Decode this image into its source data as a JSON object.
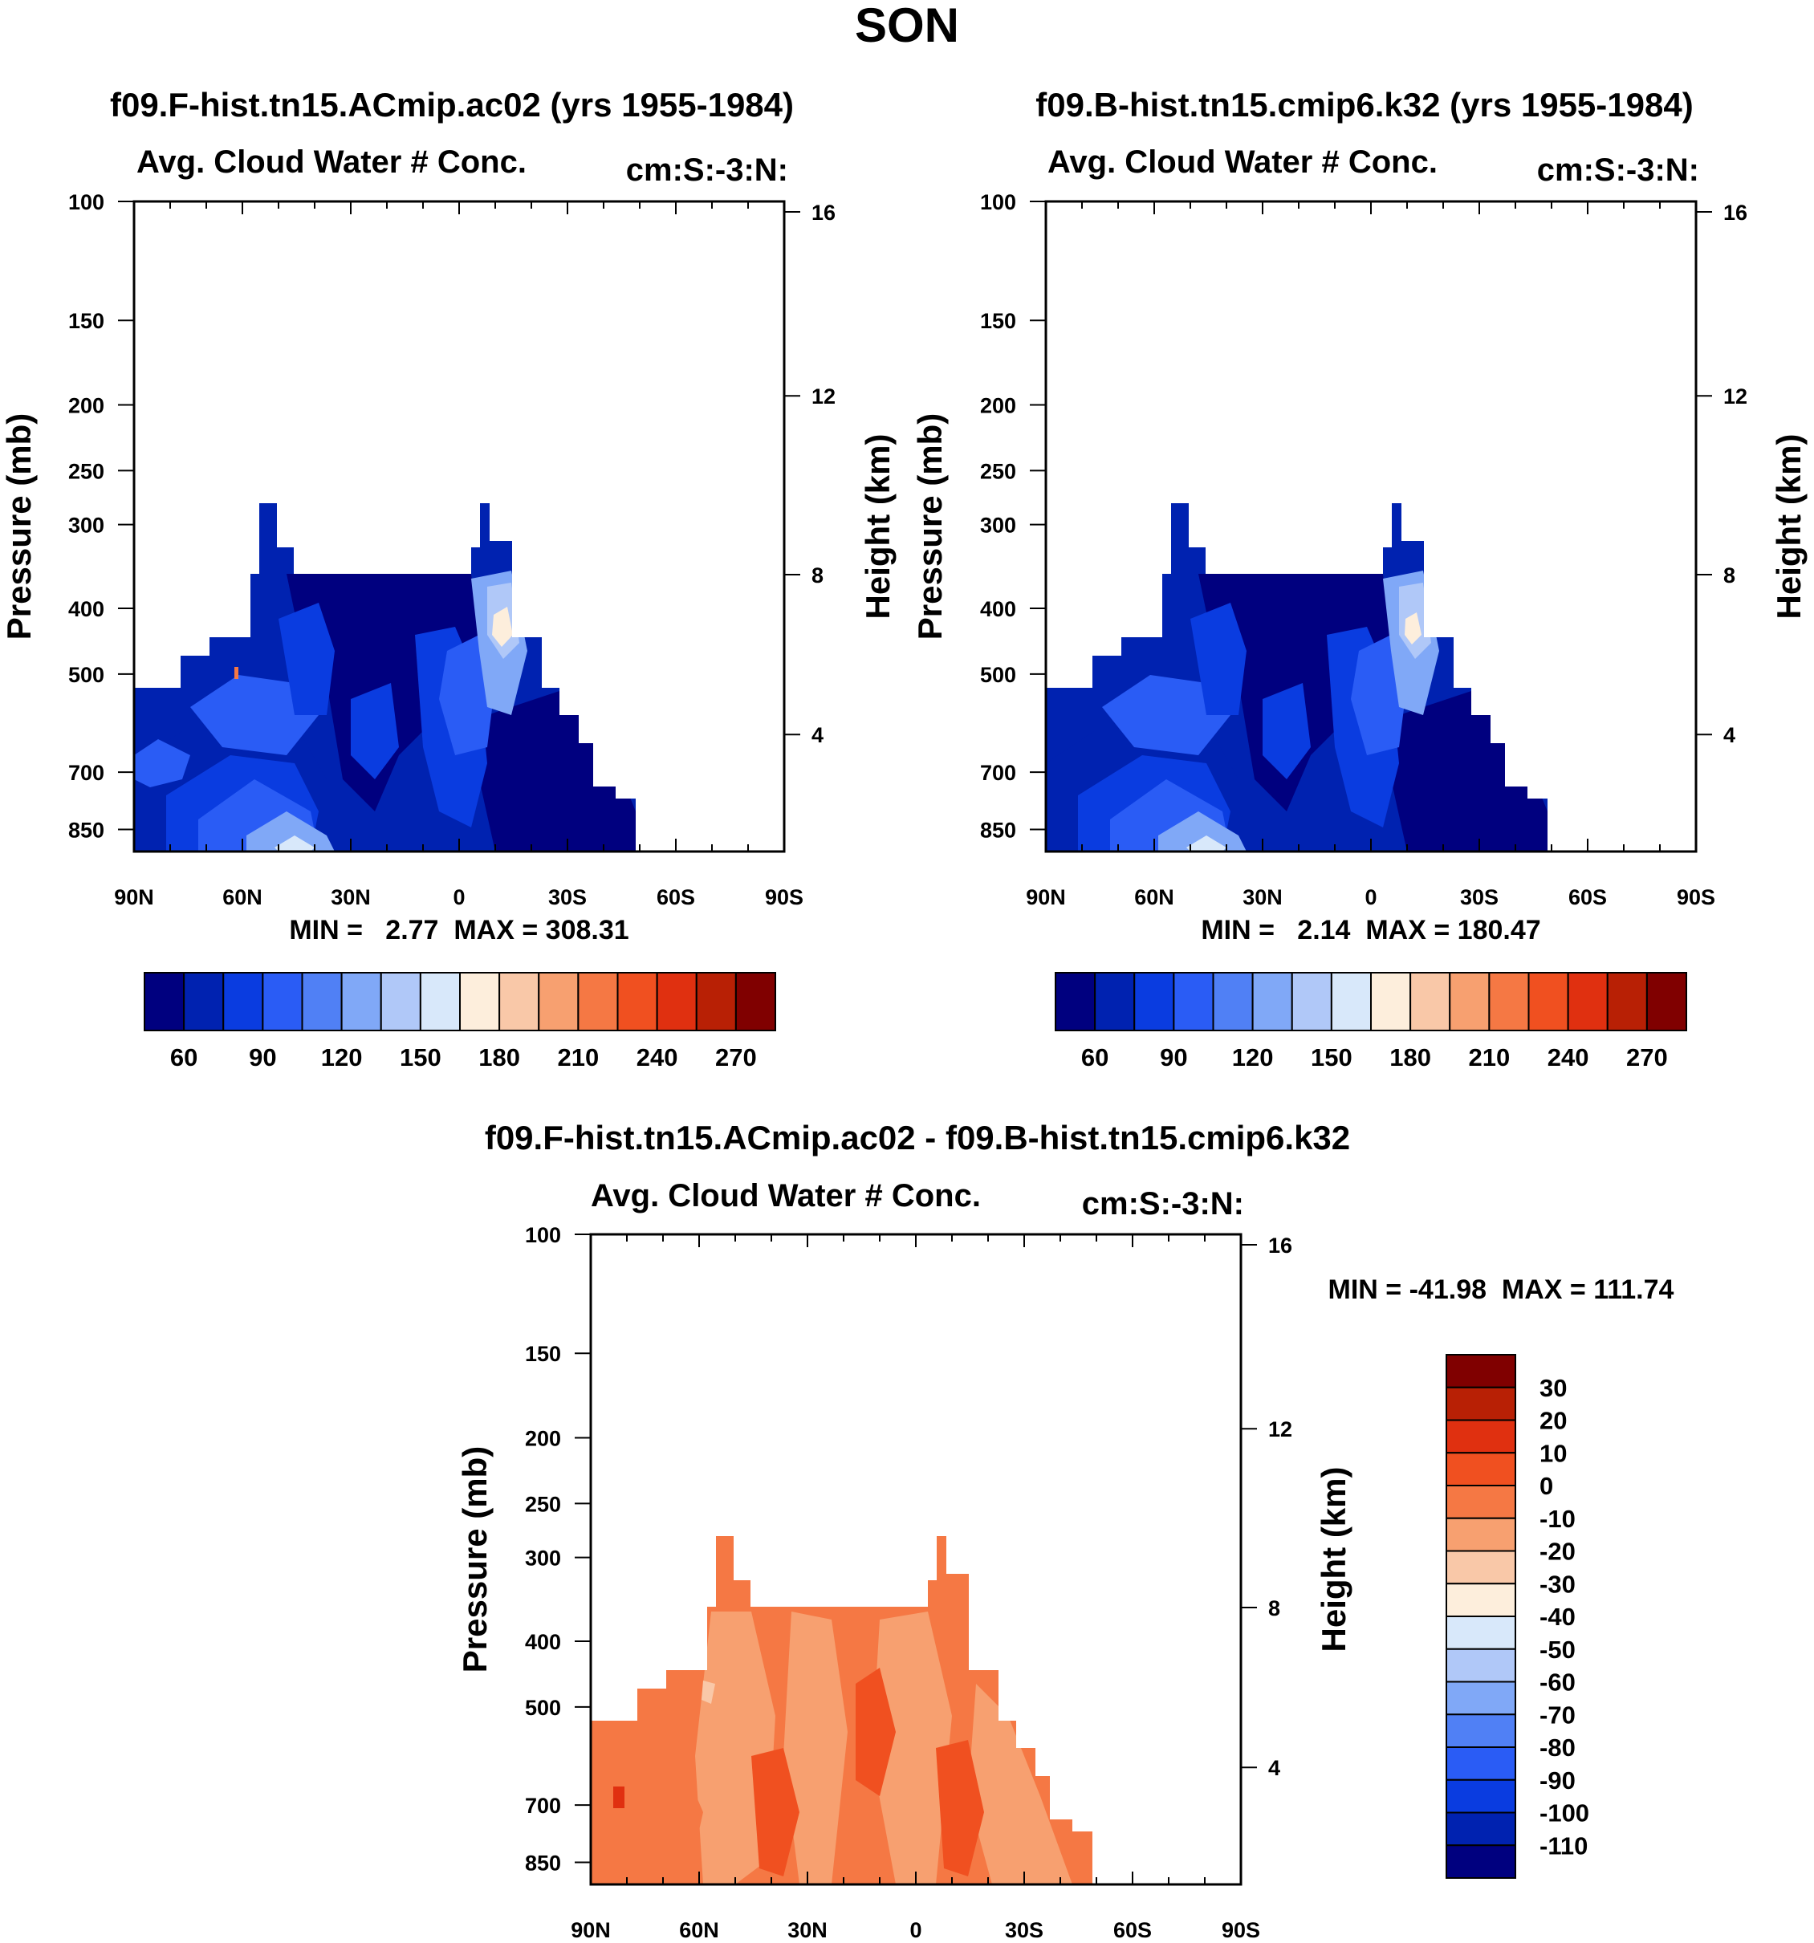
{
  "title": "SON",
  "colors": {
    "blue_to_red": [
      "#00007f",
      "#0022b0",
      "#0a3ce0",
      "#2a5cf5",
      "#5080f5",
      "#80a8f7",
      "#b0c8f8",
      "#d8e8fa",
      "#fdeedc",
      "#f9c8a8",
      "#f7a070",
      "#f57844",
      "#f05020",
      "#e03010",
      "#b82005",
      "#800000"
    ]
  },
  "chart_data": [
    {
      "type": "heatmap",
      "id": "model1",
      "title": "f09.F-hist.tn15.ACmip.ac02 (yrs 1955-1984)",
      "left_label": "Avg. Cloud Water # Conc.",
      "right_label": "cm:S:-3:N:",
      "xlabel": "",
      "ylabel": "Pressure (mb)",
      "ylabel_right": "Height (km)",
      "x_ticks": [
        "90N",
        "60N",
        "30N",
        "0",
        "30S",
        "60S",
        "90S"
      ],
      "y_ticks": [
        "100",
        "150",
        "200",
        "250",
        "300",
        "400",
        "500",
        "700",
        "850"
      ],
      "y_right_ticks": [
        "16",
        "12",
        "8",
        "4"
      ],
      "ylim": [
        1000,
        100
      ],
      "min_label": "MIN =   2.77  MAX = 308.31",
      "min": 2.77,
      "max": 308.31,
      "colorbar_labels": [
        "60",
        "90",
        "120",
        "150",
        "180",
        "210",
        "240",
        "270"
      ]
    },
    {
      "type": "heatmap",
      "id": "model2",
      "title": "f09.B-hist.tn15.cmip6.k32 (yrs 1955-1984)",
      "left_label": "Avg. Cloud Water # Conc.",
      "right_label": "cm:S:-3:N:",
      "xlabel": "",
      "ylabel": "Pressure (mb)",
      "ylabel_right": "Height (km)",
      "x_ticks": [
        "90N",
        "60N",
        "30N",
        "0",
        "30S",
        "60S",
        "90S"
      ],
      "y_ticks": [
        "100",
        "150",
        "200",
        "250",
        "300",
        "400",
        "500",
        "700",
        "850"
      ],
      "y_right_ticks": [
        "16",
        "12",
        "8",
        "4"
      ],
      "ylim": [
        1000,
        100
      ],
      "min_label": "MIN =   2.14  MAX = 180.47",
      "min": 2.14,
      "max": 180.47,
      "colorbar_labels": [
        "60",
        "90",
        "120",
        "150",
        "180",
        "210",
        "240",
        "270"
      ]
    },
    {
      "type": "heatmap",
      "id": "difference",
      "title": "f09.F-hist.tn15.ACmip.ac02 - f09.B-hist.tn15.cmip6.k32",
      "left_label": "Avg. Cloud Water # Conc.",
      "right_label": "cm:S:-3:N:",
      "xlabel": "",
      "ylabel": "Pressure (mb)",
      "ylabel_right": "Height (km)",
      "x_ticks": [
        "90N",
        "60N",
        "30N",
        "0",
        "30S",
        "60S",
        "90S"
      ],
      "y_ticks": [
        "100",
        "150",
        "200",
        "250",
        "300",
        "400",
        "500",
        "700",
        "850"
      ],
      "y_right_ticks": [
        "16",
        "12",
        "8",
        "4"
      ],
      "ylim": [
        1000,
        100
      ],
      "min_label": "MIN = -41.98  MAX = 111.74",
      "min": -41.98,
      "max": 111.74,
      "colorbar_labels": [
        "30",
        "20",
        "10",
        "0",
        "-10",
        "-20",
        "-30",
        "-40",
        "-50",
        "-60",
        "-70",
        "-80",
        "-90",
        "-100",
        "-110"
      ]
    }
  ]
}
